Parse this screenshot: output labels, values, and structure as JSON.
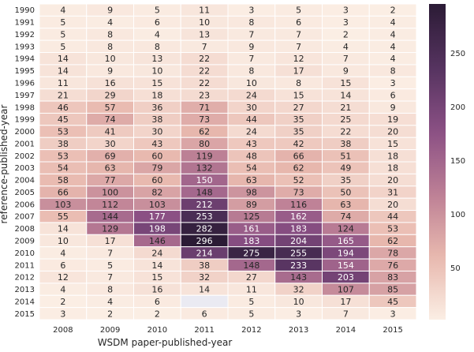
{
  "chart_data": {
    "type": "heatmap",
    "xlabel": "WSDM paper-published-year",
    "ylabel": "reference-published-year",
    "x_categories": [
      "2008",
      "2009",
      "2010",
      "2011",
      "2012",
      "2013",
      "2014",
      "2015"
    ],
    "y_categories": [
      "1990",
      "1991",
      "1992",
      "1993",
      "1994",
      "1995",
      "1996",
      "1997",
      "1998",
      "1999",
      "2000",
      "2001",
      "2002",
      "2003",
      "2004",
      "2005",
      "2006",
      "2007",
      "2008",
      "2009",
      "2010",
      "2011",
      "2012",
      "2013",
      "2014",
      "2015"
    ],
    "values": [
      [
        4,
        9,
        5,
        11,
        3,
        5,
        3,
        2
      ],
      [
        5,
        4,
        6,
        10,
        8,
        6,
        3,
        4
      ],
      [
        5,
        8,
        4,
        13,
        7,
        7,
        2,
        4
      ],
      [
        5,
        8,
        8,
        7,
        9,
        7,
        4,
        4
      ],
      [
        14,
        10,
        13,
        22,
        7,
        12,
        7,
        4
      ],
      [
        14,
        9,
        10,
        22,
        8,
        17,
        9,
        8
      ],
      [
        11,
        16,
        15,
        22,
        10,
        8,
        15,
        3
      ],
      [
        21,
        29,
        18,
        23,
        24,
        15,
        14,
        6
      ],
      [
        46,
        57,
        36,
        71,
        30,
        27,
        21,
        9
      ],
      [
        45,
        74,
        38,
        73,
        44,
        35,
        25,
        19
      ],
      [
        53,
        41,
        30,
        62,
        24,
        35,
        22,
        20
      ],
      [
        38,
        30,
        43,
        80,
        43,
        42,
        38,
        15
      ],
      [
        53,
        69,
        60,
        119,
        48,
        66,
        51,
        18
      ],
      [
        54,
        63,
        79,
        132,
        54,
        62,
        49,
        18
      ],
      [
        58,
        77,
        60,
        150,
        63,
        52,
        35,
        20
      ],
      [
        66,
        100,
        82,
        148,
        98,
        73,
        50,
        31
      ],
      [
        103,
        112,
        103,
        212,
        89,
        116,
        63,
        20
      ],
      [
        55,
        144,
        177,
        253,
        125,
        162,
        74,
        44
      ],
      [
        14,
        129,
        198,
        282,
        161,
        183,
        124,
        53
      ],
      [
        10,
        17,
        146,
        296,
        183,
        204,
        165,
        62
      ],
      [
        4,
        7,
        24,
        214,
        275,
        255,
        194,
        78
      ],
      [
        6,
        5,
        14,
        38,
        148,
        233,
        154,
        76
      ],
      [
        12,
        7,
        15,
        32,
        27,
        143,
        203,
        83
      ],
      [
        4,
        8,
        16,
        14,
        11,
        32,
        107,
        85
      ],
      [
        2,
        4,
        6,
        null,
        5,
        10,
        17,
        45
      ],
      [
        3,
        2,
        2,
        6,
        5,
        3,
        7,
        3
      ]
    ],
    "color_range": [
      2,
      296
    ],
    "colorbar_ticks": [
      50,
      100,
      150,
      200,
      250
    ],
    "colormap": [
      "#fbeee4",
      "#e8b8ae",
      "#bc7f95",
      "#8a4f84",
      "#55335f",
      "#2b1b35"
    ],
    "missing_color": "#eaeaf2",
    "legend": "colorbar-right"
  }
}
